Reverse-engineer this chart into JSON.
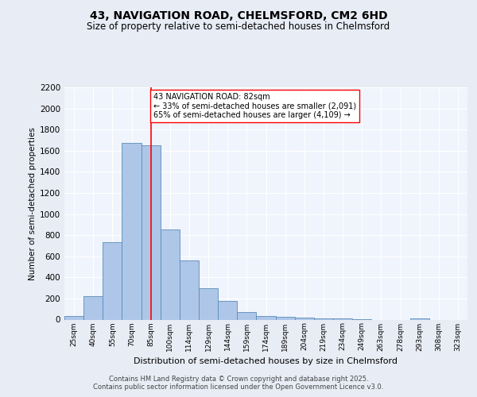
{
  "title": "43, NAVIGATION ROAD, CHELMSFORD, CM2 6HD",
  "subtitle": "Size of property relative to semi-detached houses in Chelmsford",
  "xlabel": "Distribution of semi-detached houses by size in Chelmsford",
  "ylabel": "Number of semi-detached properties",
  "bins": [
    "25sqm",
    "40sqm",
    "55sqm",
    "70sqm",
    "85sqm",
    "100sqm",
    "114sqm",
    "129sqm",
    "144sqm",
    "159sqm",
    "174sqm",
    "189sqm",
    "204sqm",
    "219sqm",
    "234sqm",
    "249sqm",
    "263sqm",
    "278sqm",
    "293sqm",
    "308sqm",
    "323sqm"
  ],
  "bar_heights": [
    35,
    220,
    730,
    1670,
    1650,
    850,
    560,
    300,
    180,
    70,
    35,
    25,
    20,
    15,
    10,
    5,
    0,
    0,
    15,
    0,
    0
  ],
  "bar_color": "#aec6e8",
  "bar_edge_color": "#5b8db8",
  "red_line_x": 4,
  "annotation_title": "43 NAVIGATION ROAD: 82sqm",
  "annotation_line1": "← 33% of semi-detached houses are smaller (2,091)",
  "annotation_line2": "65% of semi-detached houses are larger (4,109) →",
  "ylim": [
    0,
    2200
  ],
  "yticks": [
    0,
    200,
    400,
    600,
    800,
    1000,
    1200,
    1400,
    1600,
    1800,
    2000,
    2200
  ],
  "footer1": "Contains HM Land Registry data © Crown copyright and database right 2025.",
  "footer2": "Contains public sector information licensed under the Open Government Licence v3.0.",
  "bg_color": "#e8ecf5",
  "plot_bg_color": "#f0f4fc"
}
